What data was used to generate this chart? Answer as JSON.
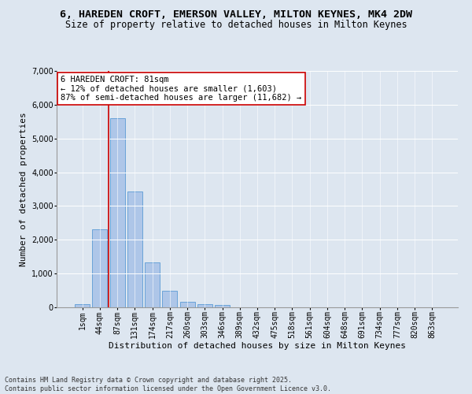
{
  "title_line1": "6, HAREDEN CROFT, EMERSON VALLEY, MILTON KEYNES, MK4 2DW",
  "title_line2": "Size of property relative to detached houses in Milton Keynes",
  "xlabel": "Distribution of detached houses by size in Milton Keynes",
  "ylabel": "Number of detached properties",
  "categories": [
    "1sqm",
    "44sqm",
    "87sqm",
    "131sqm",
    "174sqm",
    "217sqm",
    "260sqm",
    "303sqm",
    "346sqm",
    "389sqm",
    "432sqm",
    "475sqm",
    "518sqm",
    "561sqm",
    "604sqm",
    "648sqm",
    "691sqm",
    "734sqm",
    "777sqm",
    "820sqm",
    "863sqm"
  ],
  "values": [
    100,
    2300,
    5600,
    3430,
    1330,
    480,
    170,
    90,
    60,
    0,
    0,
    0,
    0,
    0,
    0,
    0,
    0,
    0,
    0,
    0,
    0
  ],
  "bar_color": "#aec6e8",
  "bar_edge_color": "#5b9bd5",
  "vline_color": "#cc0000",
  "vline_pos": 1.5,
  "annotation_text": "6 HAREDEN CROFT: 81sqm\n← 12% of detached houses are smaller (1,603)\n87% of semi-detached houses are larger (11,682) →",
  "annotation_box_color": "#ffffff",
  "annotation_box_edge": "#cc0000",
  "ylim": [
    0,
    7000
  ],
  "yticks": [
    0,
    1000,
    2000,
    3000,
    4000,
    5000,
    6000,
    7000
  ],
  "bg_color": "#dde6f0",
  "plot_bg_color": "#dde6f0",
  "footer_line1": "Contains HM Land Registry data © Crown copyright and database right 2025.",
  "footer_line2": "Contains public sector information licensed under the Open Government Licence v3.0.",
  "title_fontsize": 9.5,
  "subtitle_fontsize": 8.5,
  "axis_label_fontsize": 8,
  "tick_fontsize": 7,
  "annotation_fontsize": 7.5,
  "footer_fontsize": 6
}
